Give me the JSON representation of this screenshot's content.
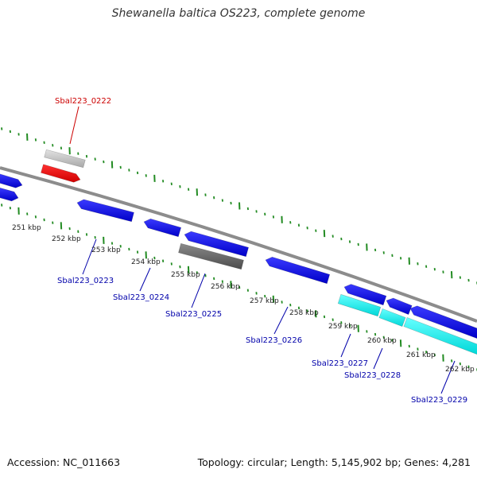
{
  "title": "Shewanella baltica OS223, complete genome",
  "footer": {
    "accession": "Accession: NC_011663",
    "summary": "Topology: circular; Length: 5,145,902 bp; Genes: 4,281"
  },
  "colors": {
    "backbone": "#8c8c8c",
    "ruler_ticks": "#228b22",
    "gene_blue": "#0000ee",
    "gene_cyan": "#00eeee",
    "gene_gray": "#666666",
    "gene_lightgray": "#c4c4c4",
    "gene_red": "#ee0000",
    "label_blue": "#0000aa",
    "label_red": "#cc0000",
    "scale_label": "#222222"
  },
  "scale_labels": [
    "251 kbp",
    "252 kbp",
    "253 kbp",
    "254 kbp",
    "255 kbp",
    "256 kbp",
    "257 kbp",
    "258 kbp",
    "259 kbp",
    "260 kbp",
    "261 kbp",
    "262 kbp"
  ],
  "gene_labels": [
    {
      "id": "Sbal223_0222",
      "color": "red"
    },
    {
      "id": "Sbal223_0223",
      "color": "blue"
    },
    {
      "id": "Sbal223_0224",
      "color": "blue"
    },
    {
      "id": "Sbal223_0225",
      "color": "blue"
    },
    {
      "id": "Sbal223_0226",
      "color": "blue"
    },
    {
      "id": "Sbal223_0227",
      "color": "blue"
    },
    {
      "id": "Sbal223_0228",
      "color": "blue"
    },
    {
      "id": "Sbal223_0229",
      "color": "blue"
    }
  ]
}
